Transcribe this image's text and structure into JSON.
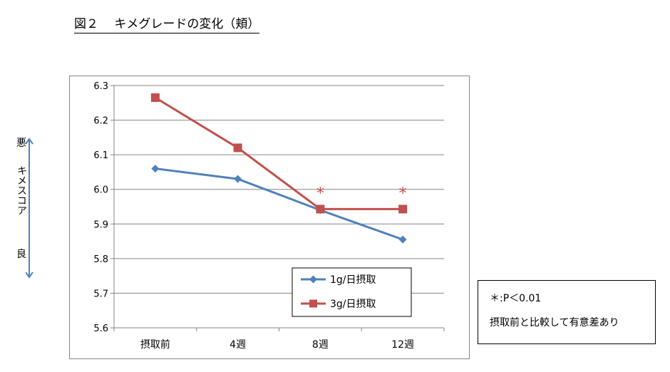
{
  "title": "図２　 キメグレードの変化（頬）",
  "side_axis": {
    "bad": "悪",
    "score": "キメスコア",
    "good": "良"
  },
  "note": {
    "line1": "＊:P＜0.01",
    "line2": "摂取前と比較して有意差あり"
  },
  "colors": {
    "series1": "#4f81bd",
    "series2": "#c0504d",
    "arrow": "#4f81bd",
    "grid": "#868686"
  },
  "chart_data": {
    "type": "line",
    "categories": [
      "摂取前",
      "4週",
      "8週",
      "12週"
    ],
    "ylim": [
      5.6,
      6.3
    ],
    "yticks": [
      "6.3",
      "6.2",
      "6.1",
      "6.0",
      "5.9",
      "5.8",
      "5.7",
      "5.6"
    ],
    "series": [
      {
        "name": "1g/日摂取",
        "marker": "diamond",
        "values": [
          6.06,
          6.03,
          5.94,
          5.855
        ]
      },
      {
        "name": "3g/日摂取",
        "marker": "square",
        "values": [
          6.265,
          6.12,
          5.943,
          5.943
        ]
      }
    ],
    "annotations": [
      {
        "category": "8週",
        "text": "*"
      },
      {
        "category": "12週",
        "text": "*"
      }
    ],
    "xlabel": "",
    "ylabel": "キメスコア",
    "legend": "bottom-right inside plot",
    "grid": true
  }
}
